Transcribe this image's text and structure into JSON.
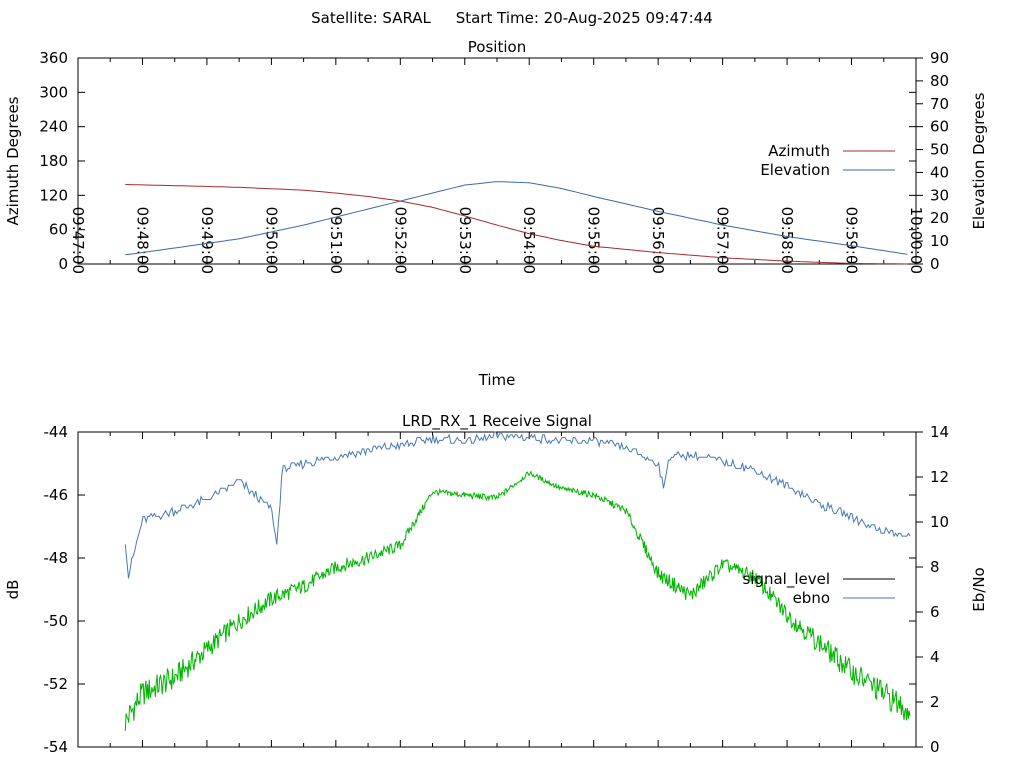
{
  "header": {
    "satellite": "Satellite: SARAL",
    "start_time": "Start Time: 20-Aug-2025 09:47:44"
  },
  "colors": {
    "azimuth": "#a52a2a",
    "elevation": "#3969a8",
    "signal": "#00b400",
    "ebno": "#4a78b4",
    "axis": "#000000"
  },
  "chart_data": [
    {
      "type": "line",
      "title": "Position",
      "xlabel": "Time",
      "ylabel": "Azimuth Degrees",
      "y2label": "Elevation Degrees",
      "xlim": [
        "09:47:00",
        "10:00:00"
      ],
      "ylim": [
        0,
        360
      ],
      "y2lim": [
        0,
        90
      ],
      "yticks": [
        "0",
        "60",
        "120",
        "180",
        "240",
        "300",
        "360"
      ],
      "y2ticks": [
        "0",
        "10",
        "20",
        "30",
        "40",
        "50",
        "60",
        "70",
        "80",
        "90"
      ],
      "xticks": [
        "09:47:00",
        "09:48:00",
        "09:49:00",
        "09:50:00",
        "09:51:00",
        "09:52:00",
        "09:53:00",
        "09:54:00",
        "09:55:00",
        "09:56:00",
        "09:57:00",
        "09:58:00",
        "09:59:00",
        "10:00:00"
      ],
      "legend_position": "right",
      "grid": false,
      "series": [
        {
          "name": "Azimuth",
          "axis": "y",
          "x": [
            "09:47:44",
            "09:48:30",
            "09:49:30",
            "09:50:30",
            "09:51:00",
            "09:51:30",
            "09:52:00",
            "09:52:30",
            "09:53:00",
            "09:53:30",
            "09:54:00",
            "09:54:30",
            "09:55:00",
            "09:56:00",
            "09:57:00",
            "09:58:00",
            "09:59:00",
            "09:59:55"
          ],
          "y": [
            139,
            137,
            134,
            129,
            124,
            118,
            110,
            99,
            84,
            68,
            53,
            41,
            31,
            20,
            11,
            5,
            1,
            0
          ]
        },
        {
          "name": "Elevation",
          "axis": "y2",
          "x": [
            "09:47:44",
            "09:48:30",
            "09:49:30",
            "09:50:30",
            "09:51:30",
            "09:52:30",
            "09:53:00",
            "09:53:30",
            "09:54:00",
            "09:54:30",
            "09:55:00",
            "09:56:00",
            "09:57:00",
            "09:58:00",
            "09:59:00",
            "09:59:55"
          ],
          "y": [
            4,
            7,
            11,
            17,
            24,
            31,
            34.5,
            36,
            35.5,
            33,
            29.5,
            23,
            17,
            12,
            8,
            4
          ]
        }
      ]
    },
    {
      "type": "line",
      "title": "LRD_RX_1 Receive Signal",
      "ylabel": "dB",
      "y2label": "Eb/No",
      "ylim": [
        -54,
        -44
      ],
      "y2lim": [
        0,
        14
      ],
      "yticks": [
        "-54",
        "-52",
        "-50",
        "-48",
        "-46",
        "-44"
      ],
      "y2ticks": [
        "0",
        "2",
        "4",
        "6",
        "8",
        "10",
        "12",
        "14"
      ],
      "legend_position": "right",
      "grid": false,
      "series": [
        {
          "name": "signal_level",
          "axis": "y",
          "x": [
            "09:47:44",
            "09:48:00",
            "09:48:30",
            "09:49:00",
            "09:49:30",
            "09:50:00",
            "09:50:30",
            "09:51:00",
            "09:51:30",
            "09:52:00",
            "09:52:30",
            "09:53:00",
            "09:53:30",
            "09:54:00",
            "09:54:30",
            "09:55:00",
            "09:55:30",
            "09:56:00",
            "09:56:30",
            "09:57:00",
            "09:57:30",
            "09:58:00",
            "09:58:30",
            "09:59:00",
            "09:59:30",
            "09:59:55"
          ],
          "y": [
            -53.2,
            -52.3,
            -51.8,
            -50.9,
            -50.0,
            -49.3,
            -48.9,
            -48.3,
            -48.0,
            -47.6,
            -45.9,
            -46.0,
            -46.1,
            -45.3,
            -45.8,
            -46.0,
            -46.5,
            -48.5,
            -49.2,
            -48.2,
            -48.6,
            -49.8,
            -50.7,
            -51.6,
            -52.3,
            -52.9
          ]
        },
        {
          "name": "ebno",
          "axis": "y2",
          "x": [
            "09:47:44",
            "09:47:47",
            "09:48:00",
            "09:48:30",
            "09:49:00",
            "09:49:30",
            "09:50:00",
            "09:50:05",
            "09:50:10",
            "09:50:30",
            "09:51:00",
            "09:51:30",
            "09:52:00",
            "09:52:30",
            "09:53:00",
            "09:53:30",
            "09:54:00",
            "09:54:30",
            "09:55:00",
            "09:55:30",
            "09:56:00",
            "09:56:05",
            "09:56:10",
            "09:56:30",
            "09:57:00",
            "09:57:30",
            "09:58:00",
            "09:58:30",
            "09:59:00",
            "09:59:30",
            "09:59:55"
          ],
          "y": [
            9.2,
            7.6,
            10.1,
            10.5,
            11.0,
            11.8,
            10.6,
            9.0,
            12.3,
            12.6,
            12.9,
            13.2,
            13.4,
            13.7,
            13.6,
            13.8,
            13.8,
            13.6,
            13.6,
            13.3,
            12.6,
            11.4,
            12.9,
            13.0,
            12.7,
            12.3,
            11.6,
            10.8,
            10.2,
            9.6,
            9.3
          ]
        }
      ]
    }
  ]
}
